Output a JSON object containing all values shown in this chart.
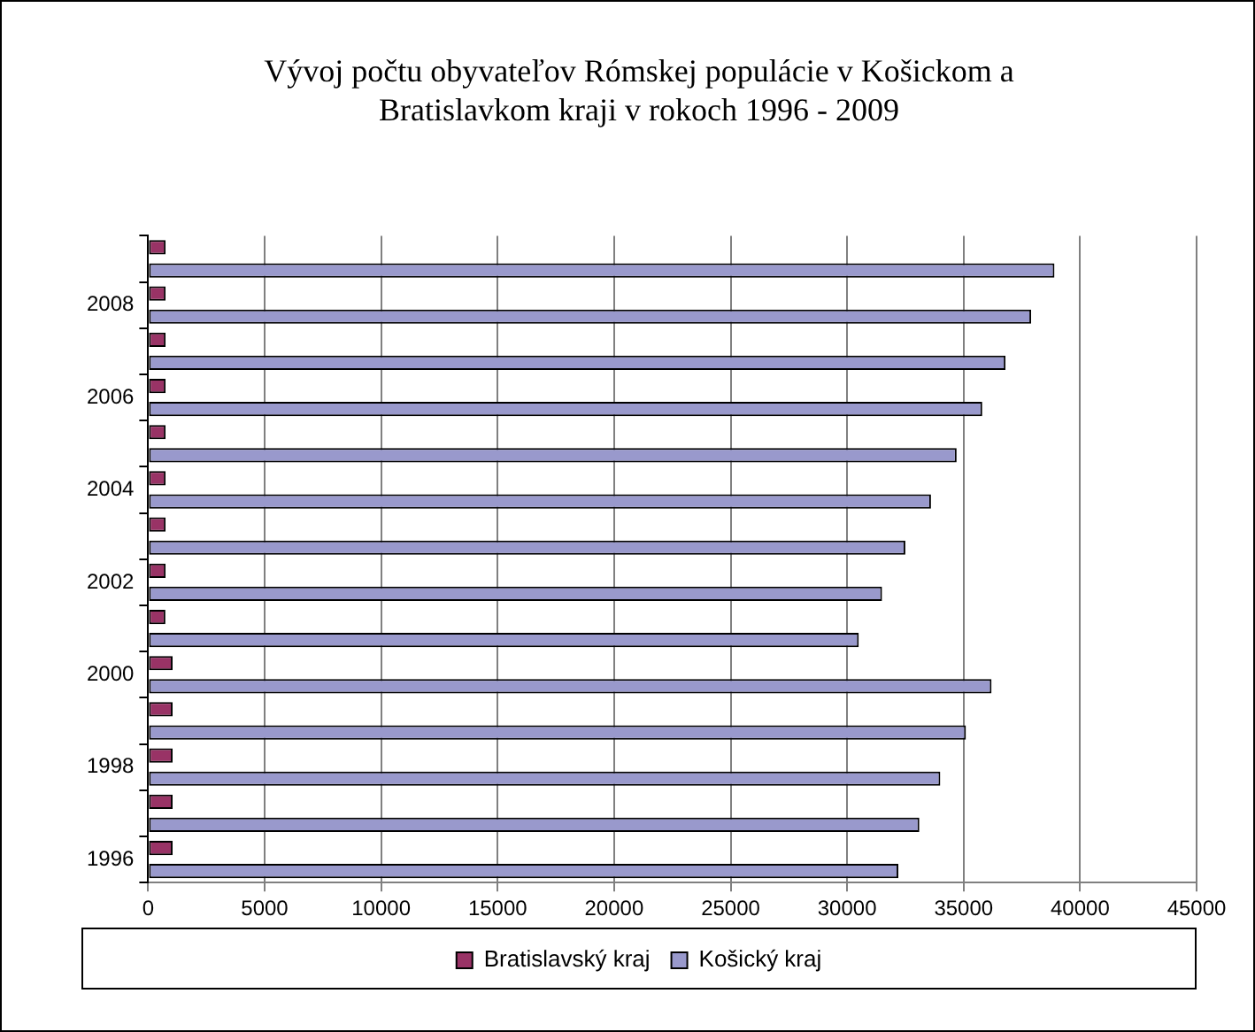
{
  "chart_data": {
    "type": "bar",
    "orientation": "horizontal",
    "title": "Vývoj počtu obyvateľov Rómskej populácie v Košickom a Bratislavkom kraji v rokoch 1996 - 2009",
    "categories": [
      null,
      "2008",
      null,
      "2006",
      null,
      "2004",
      null,
      "2002",
      null,
      "2000",
      null,
      "1998",
      null,
      "1996"
    ],
    "series": [
      {
        "name": "Bratislavský kraj",
        "color": "#993366",
        "values": [
          750,
          750,
          750,
          750,
          750,
          750,
          750,
          750,
          740,
          1050,
          1050,
          1050,
          1050,
          1050
        ]
      },
      {
        "name": "Košický kraj",
        "color": "#9999cc",
        "values": [
          38900,
          37900,
          36800,
          35800,
          34700,
          33600,
          32500,
          31500,
          30500,
          36200,
          35100,
          34000,
          33100,
          32200
        ]
      }
    ],
    "xlim": [
      0,
      45000
    ],
    "xticks": [
      0,
      5000,
      10000,
      15000,
      20000,
      25000,
      30000,
      35000,
      40000,
      45000
    ],
    "grid": "x",
    "legend": "bottom"
  }
}
